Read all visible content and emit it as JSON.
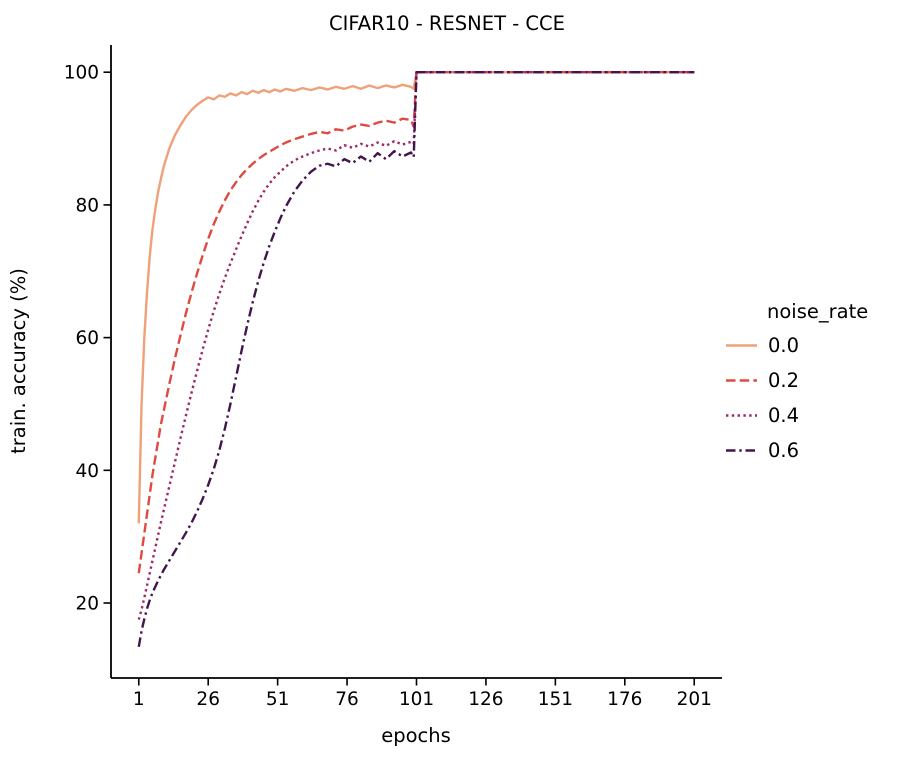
{
  "chart_data": {
    "type": "line",
    "title": "CIFAR10 - RESNET - CCE",
    "xlabel": "epochs",
    "ylabel": "train. accuracy (%)",
    "xlim": [
      -9,
      211
    ],
    "ylim": [
      8.7,
      104.1
    ],
    "xticks": [
      1,
      26,
      51,
      76,
      101,
      126,
      151,
      176,
      201
    ],
    "yticks": [
      20,
      40,
      60,
      80,
      100
    ],
    "grid": false,
    "legend": {
      "title": "noise_rate",
      "position": "center right"
    },
    "x": [
      1,
      2,
      3,
      4,
      5,
      6,
      7,
      8,
      9,
      10,
      12,
      14,
      16,
      18,
      20,
      22,
      24,
      26,
      28,
      30,
      32,
      34,
      36,
      38,
      40,
      42,
      44,
      46,
      48,
      50,
      52,
      54,
      57,
      60,
      63,
      66,
      69,
      72,
      75,
      78,
      81,
      84,
      87,
      90,
      93,
      96,
      99,
      100,
      101,
      102,
      105,
      110,
      115,
      120,
      125,
      130,
      135,
      140,
      145,
      150,
      155,
      160,
      165,
      170,
      175,
      180,
      185,
      190,
      195,
      201
    ],
    "series": [
      {
        "name": "0.0",
        "color": "#efa17a",
        "linestyle": "solid",
        "values": [
          32.0,
          50.0,
          60.0,
          67.0,
          72.5,
          76.5,
          79.5,
          82.0,
          84.0,
          85.8,
          88.5,
          90.5,
          92.0,
          93.3,
          94.3,
          95.1,
          95.7,
          96.2,
          95.9,
          96.5,
          96.3,
          96.8,
          96.5,
          97.0,
          96.7,
          97.2,
          96.9,
          97.3,
          97.0,
          97.4,
          97.1,
          97.5,
          97.2,
          97.6,
          97.3,
          97.7,
          97.4,
          97.8,
          97.5,
          97.9,
          97.5,
          98.0,
          97.6,
          98.0,
          97.7,
          98.1,
          97.8,
          97.5,
          100.0,
          100.0,
          100.0,
          100.0,
          100.0,
          100.0,
          100.0,
          100.0,
          100.0,
          100.0,
          100.0,
          100.0,
          100.0,
          100.0,
          100.0,
          100.0,
          100.0,
          100.0,
          100.0,
          100.0,
          100.0,
          100.0
        ]
      },
      {
        "name": "0.2",
        "color": "#df4a41",
        "linestyle": "dashed",
        "values": [
          24.5,
          27.5,
          30.5,
          33.5,
          36.5,
          39.5,
          42.0,
          44.5,
          47.0,
          49.0,
          53.0,
          56.8,
          60.3,
          63.7,
          66.8,
          69.7,
          72.4,
          74.9,
          77.1,
          79.0,
          80.7,
          82.2,
          83.4,
          84.5,
          85.4,
          86.2,
          86.9,
          87.5,
          88.0,
          88.5,
          89.0,
          89.4,
          89.9,
          90.3,
          90.7,
          91.0,
          90.8,
          91.4,
          91.2,
          91.8,
          92.1,
          91.9,
          92.4,
          92.7,
          92.4,
          93.0,
          92.8,
          91.8,
          100.0,
          100.0,
          100.0,
          100.0,
          100.0,
          100.0,
          100.0,
          100.0,
          100.0,
          100.0,
          100.0,
          100.0,
          100.0,
          100.0,
          100.0,
          100.0,
          100.0,
          100.0,
          100.0,
          100.0,
          100.0,
          100.0
        ]
      },
      {
        "name": "0.4",
        "color": "#9e2766",
        "linestyle": "dotted",
        "values": [
          17.5,
          19.0,
          20.8,
          22.7,
          24.6,
          26.5,
          28.4,
          30.3,
          32.2,
          34.0,
          37.6,
          41.2,
          44.8,
          48.3,
          51.7,
          55.0,
          58.2,
          61.2,
          64.0,
          66.6,
          69.0,
          71.2,
          73.3,
          75.3,
          77.2,
          79.0,
          80.6,
          82.0,
          83.2,
          84.2,
          85.0,
          85.8,
          86.7,
          87.3,
          87.8,
          88.2,
          88.5,
          88.2,
          89.0,
          88.6,
          89.2,
          88.8,
          89.4,
          88.9,
          89.6,
          89.1,
          89.5,
          89.2,
          100.0,
          100.0,
          100.0,
          100.0,
          100.0,
          100.0,
          100.0,
          100.0,
          100.0,
          100.0,
          100.0,
          100.0,
          100.0,
          100.0,
          100.0,
          100.0,
          100.0,
          100.0,
          100.0,
          100.0,
          100.0,
          100.0
        ]
      },
      {
        "name": "0.6",
        "color": "#42164d",
        "linestyle": "dashdot",
        "values": [
          13.4,
          15.8,
          17.6,
          19.2,
          20.5,
          21.6,
          22.5,
          23.4,
          24.2,
          25.0,
          26.4,
          27.8,
          29.2,
          30.6,
          32.1,
          33.8,
          35.7,
          37.8,
          40.2,
          43.0,
          46.3,
          50.0,
          54.0,
          58.0,
          61.8,
          65.3,
          68.5,
          71.3,
          73.8,
          76.0,
          78.0,
          79.8,
          82.0,
          83.7,
          85.0,
          85.9,
          86.2,
          85.8,
          86.9,
          86.3,
          87.3,
          86.5,
          87.8,
          86.9,
          88.1,
          87.3,
          87.9,
          87.2,
          100.0,
          100.0,
          100.0,
          100.0,
          100.0,
          100.0,
          100.0,
          100.0,
          100.0,
          100.0,
          100.0,
          100.0,
          100.0,
          100.0,
          100.0,
          100.0,
          100.0,
          100.0,
          100.0,
          100.0,
          100.0,
          100.0
        ]
      }
    ]
  }
}
